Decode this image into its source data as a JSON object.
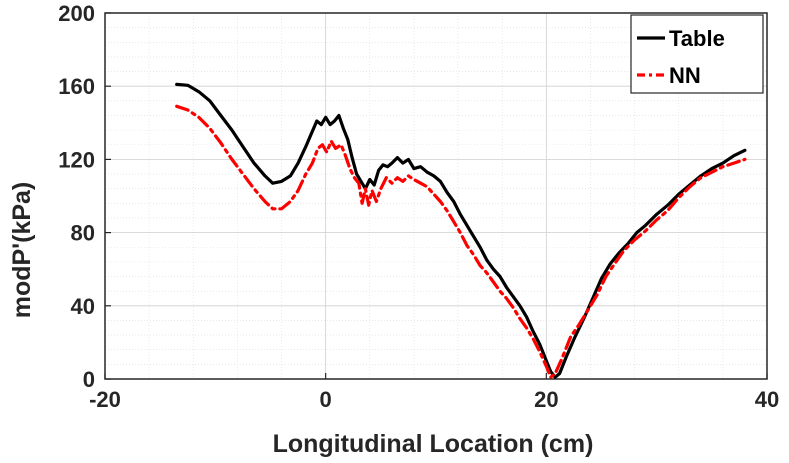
{
  "chart_data": {
    "type": "line",
    "title": "",
    "xlabel": "Longitudinal Location (cm)",
    "ylabel": "modP'(kPa)",
    "xlim": [
      -20,
      40
    ],
    "ylim": [
      0,
      200
    ],
    "xticks": [
      -20,
      0,
      20,
      40
    ],
    "yticks": [
      0,
      40,
      80,
      120,
      160,
      200
    ],
    "grid": true,
    "minor_grid": true,
    "legend_position": "top-right",
    "series": [
      {
        "name": "Table",
        "color": "#000000",
        "style": "solid",
        "points": [
          [
            -13.5,
            161
          ],
          [
            -12.5,
            160.5
          ],
          [
            -11.5,
            157
          ],
          [
            -10.5,
            152
          ],
          [
            -9.5,
            144
          ],
          [
            -8.5,
            136
          ],
          [
            -7.5,
            127
          ],
          [
            -6.5,
            118
          ],
          [
            -5.5,
            111
          ],
          [
            -4.8,
            107
          ],
          [
            -4.0,
            108
          ],
          [
            -3.2,
            111
          ],
          [
            -2.5,
            118
          ],
          [
            -1.8,
            127
          ],
          [
            -1.3,
            134
          ],
          [
            -0.8,
            141
          ],
          [
            -0.4,
            139
          ],
          [
            0.0,
            143
          ],
          [
            0.4,
            139
          ],
          [
            0.8,
            141
          ],
          [
            1.2,
            144
          ],
          [
            1.6,
            137
          ],
          [
            2.0,
            131
          ],
          [
            2.4,
            121
          ],
          [
            2.8,
            112
          ],
          [
            3.2,
            108
          ],
          [
            3.6,
            104
          ],
          [
            4.0,
            109
          ],
          [
            4.4,
            106
          ],
          [
            4.8,
            114
          ],
          [
            5.2,
            117
          ],
          [
            5.6,
            116
          ],
          [
            6.0,
            118
          ],
          [
            6.5,
            121
          ],
          [
            7.0,
            118
          ],
          [
            7.5,
            120
          ],
          [
            8.0,
            115
          ],
          [
            8.6,
            116
          ],
          [
            9.2,
            113
          ],
          [
            9.8,
            111
          ],
          [
            10.4,
            108
          ],
          [
            11.0,
            102
          ],
          [
            11.6,
            97
          ],
          [
            12.2,
            90
          ],
          [
            12.8,
            84
          ],
          [
            13.4,
            78
          ],
          [
            14.0,
            72
          ],
          [
            14.6,
            65
          ],
          [
            15.2,
            60
          ],
          [
            15.8,
            56
          ],
          [
            16.4,
            50
          ],
          [
            17.0,
            45
          ],
          [
            17.6,
            40
          ],
          [
            18.2,
            34
          ],
          [
            18.8,
            26
          ],
          [
            19.4,
            19
          ],
          [
            20.0,
            10
          ],
          [
            20.4,
            4
          ],
          [
            20.8,
            1
          ],
          [
            21.2,
            3
          ],
          [
            21.8,
            12
          ],
          [
            22.6,
            23
          ],
          [
            23.4,
            33
          ],
          [
            24.2,
            44
          ],
          [
            25.0,
            55
          ],
          [
            25.8,
            63
          ],
          [
            26.6,
            69
          ],
          [
            27.4,
            74
          ],
          [
            28.2,
            80
          ],
          [
            29.0,
            84
          ],
          [
            30.0,
            90
          ],
          [
            31.0,
            95
          ],
          [
            32.0,
            101
          ],
          [
            33.0,
            106
          ],
          [
            34.0,
            111
          ],
          [
            35.0,
            115
          ],
          [
            36.0,
            118
          ],
          [
            37.0,
            122
          ],
          [
            38.0,
            125
          ]
        ]
      },
      {
        "name": "NN",
        "color": "#ff0000",
        "style": "dashed",
        "points": [
          [
            -13.5,
            149
          ],
          [
            -12.5,
            147
          ],
          [
            -11.5,
            143
          ],
          [
            -10.5,
            137
          ],
          [
            -9.5,
            129
          ],
          [
            -8.5,
            120
          ],
          [
            -7.5,
            112
          ],
          [
            -6.5,
            104
          ],
          [
            -5.5,
            97
          ],
          [
            -4.8,
            93
          ],
          [
            -4.0,
            93
          ],
          [
            -3.2,
            97
          ],
          [
            -2.5,
            103
          ],
          [
            -1.8,
            112
          ],
          [
            -1.2,
            118
          ],
          [
            -0.7,
            126
          ],
          [
            -0.3,
            128
          ],
          [
            0.1,
            124
          ],
          [
            0.5,
            130
          ],
          [
            0.9,
            126
          ],
          [
            1.4,
            128
          ],
          [
            1.8,
            122
          ],
          [
            2.2,
            115
          ],
          [
            2.6,
            110
          ],
          [
            3.0,
            107
          ],
          [
            3.3,
            96
          ],
          [
            3.6,
            104
          ],
          [
            3.9,
            95
          ],
          [
            4.2,
            103
          ],
          [
            4.6,
            97
          ],
          [
            5.0,
            104
          ],
          [
            5.5,
            110
          ],
          [
            6.0,
            107
          ],
          [
            6.5,
            110
          ],
          [
            7.0,
            108
          ],
          [
            7.5,
            111
          ],
          [
            8.0,
            109
          ],
          [
            8.6,
            107
          ],
          [
            9.2,
            105
          ],
          [
            9.8,
            101
          ],
          [
            10.4,
            97
          ],
          [
            11.0,
            92
          ],
          [
            11.6,
            86
          ],
          [
            12.2,
            80
          ],
          [
            12.8,
            73
          ],
          [
            13.4,
            68
          ],
          [
            14.0,
            62
          ],
          [
            14.6,
            58
          ],
          [
            15.2,
            53
          ],
          [
            15.8,
            48
          ],
          [
            16.4,
            44
          ],
          [
            17.0,
            39
          ],
          [
            17.6,
            33
          ],
          [
            18.2,
            28
          ],
          [
            18.8,
            22
          ],
          [
            19.4,
            15
          ],
          [
            20.0,
            7
          ],
          [
            20.4,
            1
          ],
          [
            20.8,
            3
          ],
          [
            21.4,
            11
          ],
          [
            22.2,
            23
          ],
          [
            23.0,
            30
          ],
          [
            23.8,
            38
          ],
          [
            24.6,
            46
          ],
          [
            25.4,
            56
          ],
          [
            26.2,
            63
          ],
          [
            27.0,
            70
          ],
          [
            28.0,
            76
          ],
          [
            29.0,
            81
          ],
          [
            30.0,
            87
          ],
          [
            31.0,
            92
          ],
          [
            32.0,
            99
          ],
          [
            33.0,
            105
          ],
          [
            34.0,
            110
          ],
          [
            35.0,
            113
          ],
          [
            36.0,
            116
          ],
          [
            37.0,
            118
          ],
          [
            38.0,
            120
          ]
        ]
      }
    ]
  }
}
